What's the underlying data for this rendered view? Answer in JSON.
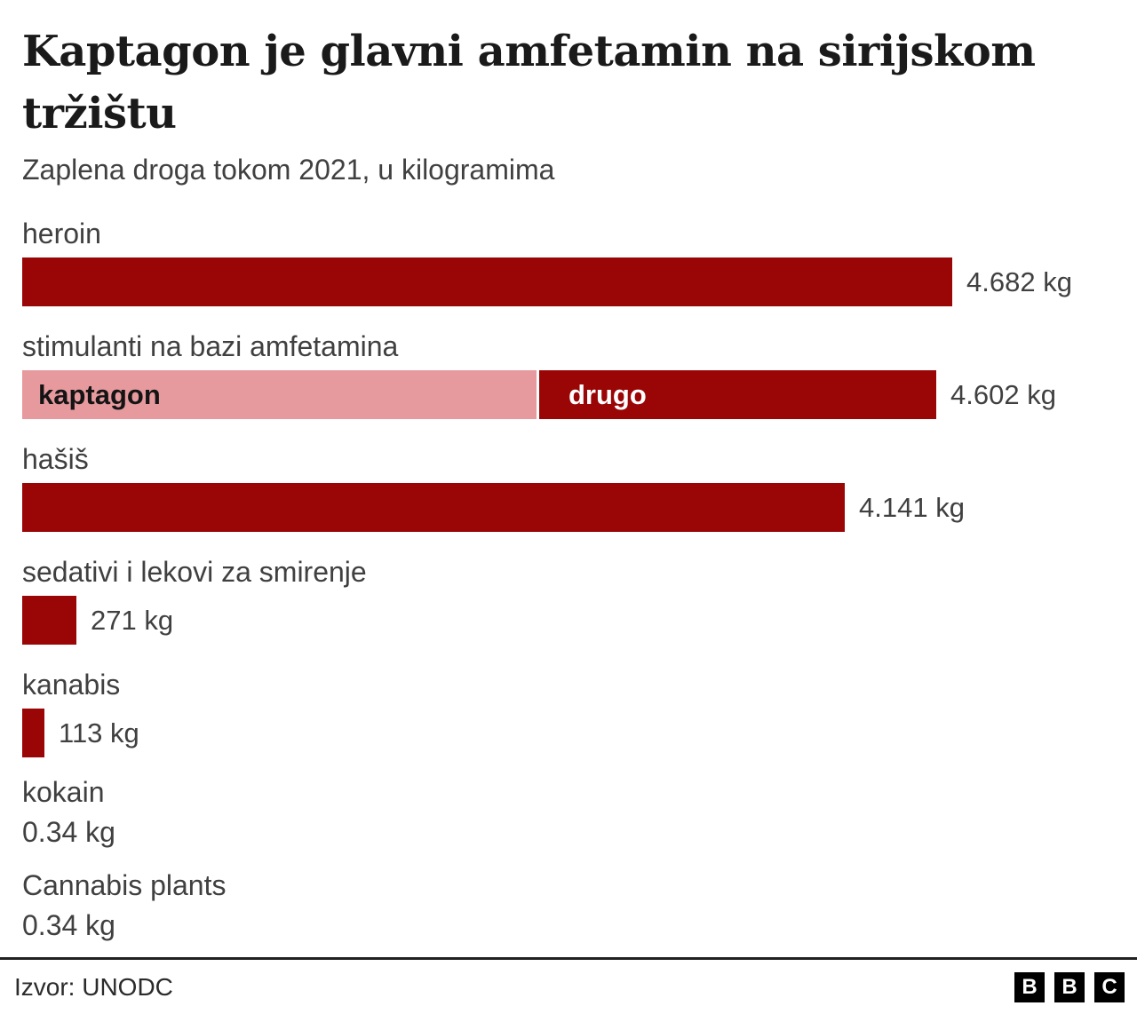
{
  "header": {
    "title": "Kaptagon je glavni amfetamin na sirijskom tržištu",
    "title_lines": [
      "Kaptagon je glavni amfetamin na sirijskom",
      "tržištu"
    ],
    "subtitle": "Zaplena droga tokom 2021, u kilogramima"
  },
  "chart_data": {
    "type": "bar",
    "orientation": "horizontal",
    "title": "Kaptagon je glavni amfetamin na sirijskom tržištu",
    "subtitle": "Zaplena droga tokom 2021, u kilogramima",
    "unit": "kg",
    "axis": "none",
    "grid": false,
    "max_value_kg": 4682,
    "rows": [
      {
        "label": "heroin",
        "value_kg": 4682,
        "value_label": "4.682 kg",
        "bar": true
      },
      {
        "label": "stimulanti na bazi amfetamina",
        "value_kg": 4602,
        "value_label": "4.602 kg",
        "bar": true,
        "segments": [
          {
            "label": "kaptagon",
            "fraction": 0.563,
            "color": "#e69a9e",
            "text_color": "#141414"
          },
          {
            "label": "drugo",
            "fraction": 0.437,
            "color": "#9a0506",
            "text_color": "#ffffff"
          }
        ]
      },
      {
        "label": "hašiš",
        "value_kg": 4141,
        "value_label": "4.141 kg",
        "bar": true
      },
      {
        "label": "sedativi i lekovi za smirenje",
        "value_kg": 271,
        "value_label": "271 kg",
        "bar": true
      },
      {
        "label": "kanabis",
        "value_kg": 113,
        "value_label": "113 kg",
        "bar": true
      },
      {
        "label": "kokain",
        "value_kg": 0.34,
        "value_label": "0.34 kg",
        "bar": false
      },
      {
        "label": "Cannabis plants",
        "value_kg": 0.34,
        "value_label": "0.34 kg",
        "bar": false
      }
    ],
    "colors": {
      "bar": "#9a0506",
      "kaptagon_segment": "#e69a9e",
      "label_text": "#404040",
      "title_text": "#1a1a1a"
    }
  },
  "footer": {
    "source": "Izvor: UNODC",
    "logo_letters": [
      "B",
      "B",
      "C"
    ]
  }
}
